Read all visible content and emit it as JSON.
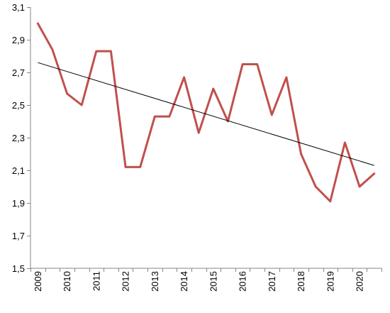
{
  "chart_data": {
    "type": "line",
    "title": "",
    "xlabel": "",
    "ylabel": "",
    "ylim": [
      1.5,
      3.1
    ],
    "y_ticks": [
      "1,5",
      "1,7",
      "1,9",
      "2,1",
      "2,3",
      "2,5",
      "2,7",
      "2,9",
      "3,1"
    ],
    "y_tick_values": [
      1.5,
      1.7,
      1.9,
      2.1,
      2.3,
      2.5,
      2.7,
      2.9,
      3.1
    ],
    "x_tick_labels": [
      "2009",
      "2010",
      "2011",
      "2012",
      "2013",
      "2014",
      "2015",
      "2016",
      "2017",
      "2018",
      "2019",
      "2020"
    ],
    "x": [
      "2009",
      "2009.5",
      "2010",
      "2010.5",
      "2011",
      "2011.5",
      "2012",
      "2012.5",
      "2013",
      "2013.5",
      "2014",
      "2014.5",
      "2015",
      "2015.5",
      "2016",
      "2016.5",
      "2017",
      "2017.5",
      "2018",
      "2018.5",
      "2019",
      "2019.5",
      "2020",
      "2020.5"
    ],
    "grid": false,
    "legend": "none",
    "series": [
      {
        "color": "#c0504d",
        "values": [
          3.0,
          2.84,
          2.57,
          2.5,
          2.83,
          2.83,
          2.12,
          2.12,
          2.43,
          2.43,
          2.67,
          2.33,
          2.6,
          2.4,
          2.75,
          2.75,
          2.44,
          2.67,
          2.2,
          2.0,
          1.91,
          2.27,
          2.0,
          2.08
        ]
      }
    ],
    "trendline": {
      "type": "linear",
      "color": "#000000",
      "start_value": 2.76,
      "end_value": 2.13
    },
    "axis_color": "#868686"
  }
}
